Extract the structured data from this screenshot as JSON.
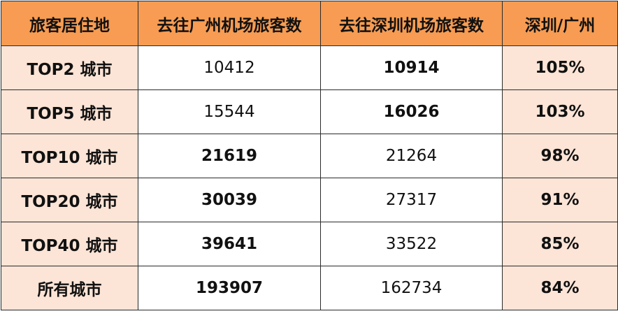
{
  "table": {
    "headers": [
      "旅客居住地",
      "去往广州机场旅客数",
      "去往深圳机场旅客数",
      "深圳/广州"
    ],
    "rows": [
      {
        "label": "TOP2 城市",
        "guangzhou": "10412",
        "shenzhen": "10914",
        "ratio": "105%",
        "bold_col": "shenzhen"
      },
      {
        "label": "TOP5 城市",
        "guangzhou": "15544",
        "shenzhen": "16026",
        "ratio": "103%",
        "bold_col": "shenzhen"
      },
      {
        "label": "TOP10 城市",
        "guangzhou": "21619",
        "shenzhen": "21264",
        "ratio": "98%",
        "bold_col": "guangzhou"
      },
      {
        "label": "TOP20 城市",
        "guangzhou": "30039",
        "shenzhen": "27317",
        "ratio": "91%",
        "bold_col": "guangzhou"
      },
      {
        "label": "TOP40 城市",
        "guangzhou": "39641",
        "shenzhen": "33522",
        "ratio": "85%",
        "bold_col": "guangzhou"
      },
      {
        "label": "所有城市",
        "guangzhou": "193907",
        "shenzhen": "162734",
        "ratio": "84%",
        "bold_col": "guangzhou"
      }
    ]
  },
  "colors": {
    "header_bg": "#f79c52",
    "label_bg": "#fce4d6",
    "border": "#2a2a2a"
  }
}
